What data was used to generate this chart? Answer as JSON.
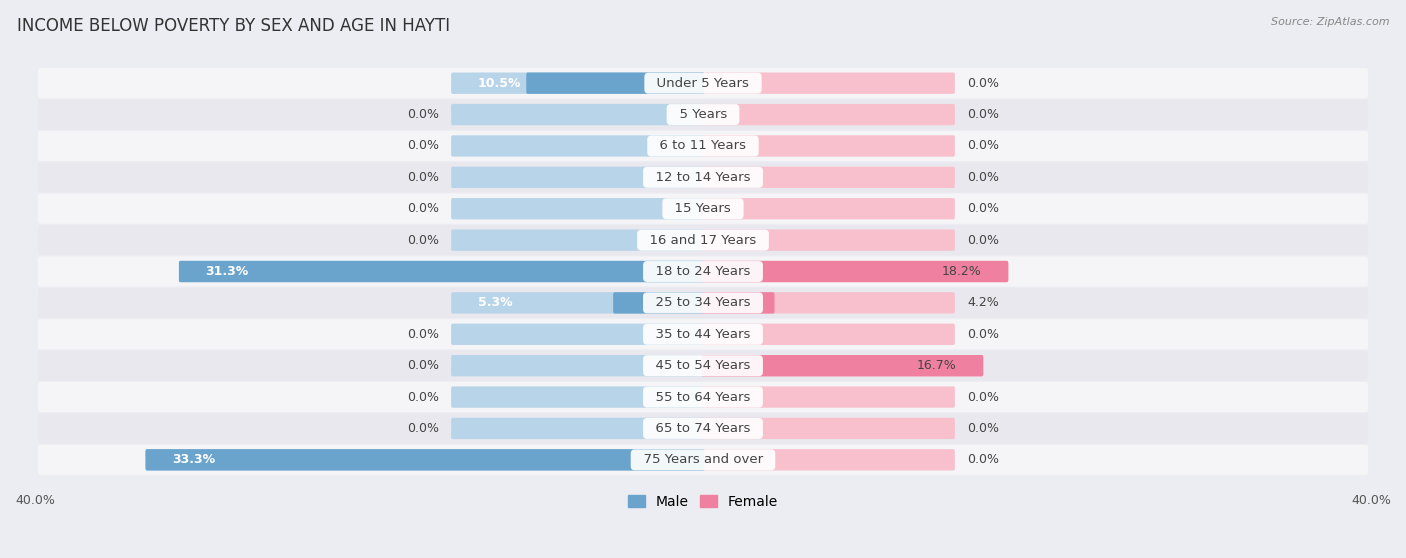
{
  "title": "INCOME BELOW POVERTY BY SEX AND AGE IN HAYTI",
  "source": "Source: ZipAtlas.com",
  "categories": [
    "Under 5 Years",
    "5 Years",
    "6 to 11 Years",
    "12 to 14 Years",
    "15 Years",
    "16 and 17 Years",
    "18 to 24 Years",
    "25 to 34 Years",
    "35 to 44 Years",
    "45 to 54 Years",
    "55 to 64 Years",
    "65 to 74 Years",
    "75 Years and over"
  ],
  "male": [
    10.5,
    0.0,
    0.0,
    0.0,
    0.0,
    0.0,
    31.3,
    5.3,
    0.0,
    0.0,
    0.0,
    0.0,
    33.3
  ],
  "female": [
    0.0,
    0.0,
    0.0,
    0.0,
    0.0,
    0.0,
    18.2,
    4.2,
    0.0,
    16.7,
    0.0,
    0.0,
    0.0
  ],
  "male_color_dark": "#6aa3cc",
  "male_color_light": "#b8d4e8",
  "female_color_dark": "#f080a0",
  "female_color_light": "#f8c0cc",
  "default_bar_extent": 15.0,
  "xlim": 40.0,
  "bg_color": "#ecedf2",
  "row_bg_even": "#f5f5f8",
  "row_bg_odd": "#e8e8ee",
  "label_fontsize": 9.5,
  "title_fontsize": 12,
  "legend_fontsize": 10,
  "axis_fontsize": 9,
  "value_fontsize": 9
}
